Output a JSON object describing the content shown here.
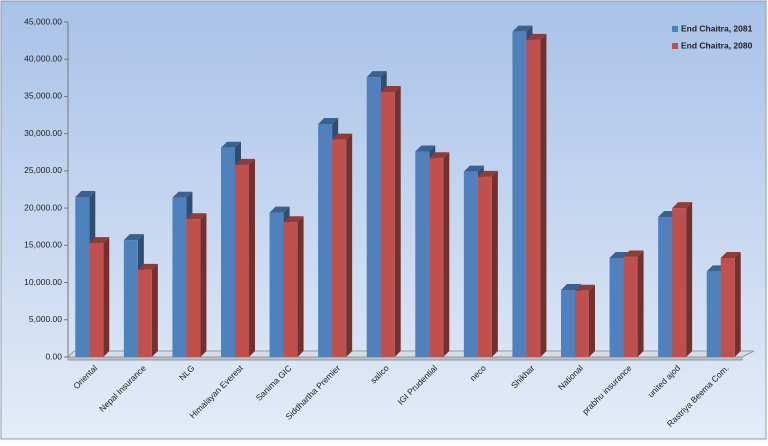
{
  "chart_data": {
    "type": "bar3d",
    "categories": [
      "Oriental",
      "Nepal Insurance",
      "NLG",
      "Himalayan Everest",
      "Sanima GIC",
      "Siddhartha Premier",
      "salico",
      "IGI Prudential",
      "neco",
      "Shikhar",
      "National",
      "prabhu insurance",
      "united ajod",
      "Rastriya Beema Com."
    ],
    "series": [
      {
        "name": "End Chaitra, 2081",
        "color": "#4f81bd",
        "values": [
          21500,
          15700,
          21400,
          28100,
          19400,
          31300,
          37600,
          27600,
          24900,
          43700,
          9000,
          13300,
          18800,
          11500
        ]
      },
      {
        "name": "End Chaitra, 2080",
        "color": "#c0504d",
        "values": [
          15300,
          11700,
          18500,
          25800,
          18100,
          29200,
          35600,
          26700,
          24200,
          42600,
          8900,
          13500,
          20000,
          13300
        ]
      }
    ],
    "ylim": [
      0,
      45000
    ],
    "yticks": [
      {
        "value": 0,
        "label": "0.00"
      },
      {
        "value": 5000,
        "label": "5,000.00"
      },
      {
        "value": 10000,
        "label": "10,000.00"
      },
      {
        "value": 15000,
        "label": "15,000.00"
      },
      {
        "value": 20000,
        "label": "20,000.00"
      },
      {
        "value": 25000,
        "label": "25,000.00"
      },
      {
        "value": 30000,
        "label": "30,000.00"
      },
      {
        "value": 35000,
        "label": "35,000.00"
      },
      {
        "value": 40000,
        "label": "40,000.00"
      },
      {
        "value": 45000,
        "label": "45,000.00"
      }
    ],
    "grid": false,
    "legend": "top-right"
  }
}
